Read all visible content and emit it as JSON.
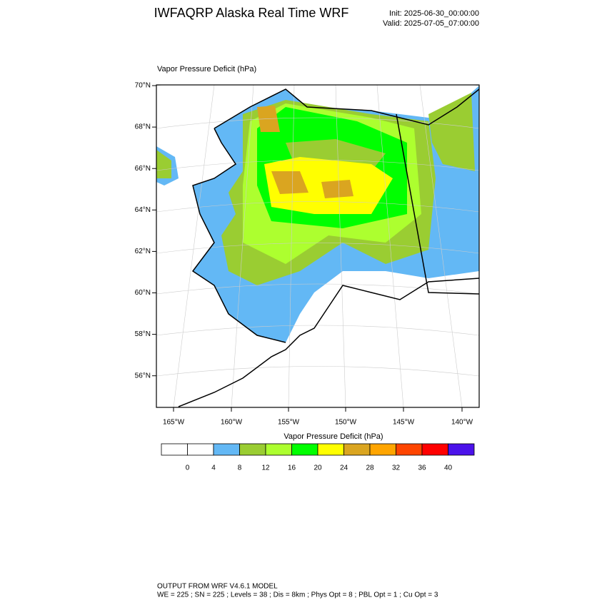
{
  "header": {
    "title": "IWFAQRP Alaska Real Time WRF",
    "init": "Init: 2025-06-30_00:00:00",
    "valid": "Valid: 2025-07-05_07:00:00"
  },
  "map": {
    "field_label": "Vapor Pressure Deficit   (hPa)",
    "lat_labels": [
      "70°N",
      "68°N",
      "66°N",
      "64°N",
      "62°N",
      "60°N",
      "58°N",
      "56°N"
    ],
    "lon_labels": [
      "165°W",
      "160°W",
      "155°W",
      "150°W",
      "145°W",
      "140°W"
    ]
  },
  "colorbar": {
    "title": "Vapor Pressure Deficit  (hPa)",
    "colors": [
      "#ffffff",
      "#ffffff",
      "#63b8f5",
      "#9acd32",
      "#adff2f",
      "#00ff00",
      "#ffff00",
      "#daa520",
      "#ffa500",
      "#ff4500",
      "#ff0000",
      "#4b12ea"
    ],
    "levels": [
      0,
      4,
      8,
      12,
      16,
      20,
      24,
      28,
      32,
      36,
      40
    ]
  },
  "footer": {
    "line1": "OUTPUT FROM WRF V4.6.1 MODEL",
    "line2": "WE = 225 ; SN = 225 ; Levels = 38 ; Dis = 8km ; Phys Opt = 8 ; PBL Opt = 1 ; Cu Opt = 3"
  }
}
